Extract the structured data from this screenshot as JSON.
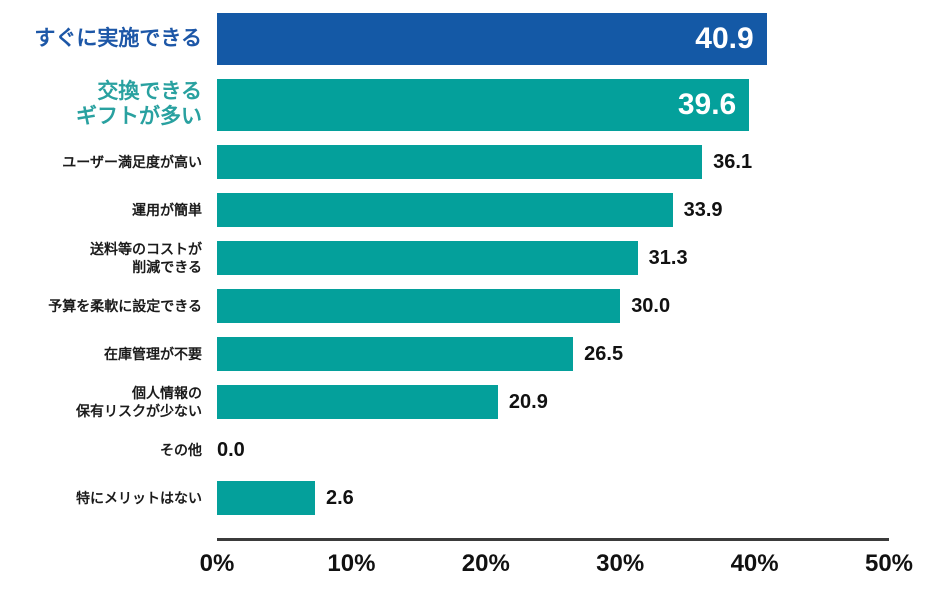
{
  "chart_data": {
    "type": "bar",
    "orientation": "horizontal",
    "title": "",
    "unit": "%",
    "items": [
      {
        "label_lines": [
          "すぐに実施できる"
        ],
        "value": 40.9,
        "display_value": "40.9",
        "color": "blue",
        "emphasis": true
      },
      {
        "label_lines": [
          "交換できる",
          "ギフトが多い"
        ],
        "value": 39.6,
        "display_value": "39.6",
        "color": "teal",
        "emphasis": true
      },
      {
        "label_lines": [
          "ユーザー満足度が高い"
        ],
        "value": 36.1,
        "display_value": "36.1",
        "color": "teal",
        "emphasis": false
      },
      {
        "label_lines": [
          "運用が簡単"
        ],
        "value": 33.9,
        "display_value": "33.9",
        "color": "teal",
        "emphasis": false
      },
      {
        "label_lines": [
          "送料等のコストが",
          "削減できる"
        ],
        "value": 31.3,
        "display_value": "31.3",
        "color": "teal",
        "emphasis": false
      },
      {
        "label_lines": [
          "予算を柔軟に設定できる"
        ],
        "value": 30.0,
        "display_value": "30.0",
        "color": "teal",
        "emphasis": false
      },
      {
        "label_lines": [
          "在庫管理が不要"
        ],
        "value": 26.5,
        "display_value": "26.5",
        "color": "teal",
        "emphasis": false
      },
      {
        "label_lines": [
          "個人情報の",
          "保有リスクが少ない"
        ],
        "value": 20.9,
        "display_value": "20.9",
        "color": "teal",
        "emphasis": false
      },
      {
        "label_lines": [
          "その他"
        ],
        "value": 0.0,
        "display_value": "0.0",
        "color": "teal",
        "emphasis": false
      },
      {
        "label_lines": [
          "特にメリットはない"
        ],
        "value": 2.6,
        "display_value": "2.6",
        "color": "teal",
        "emphasis": false
      }
    ],
    "x_axis": {
      "ticks": [
        "0%",
        "10%",
        "20%",
        "30%",
        "40%",
        "50%"
      ],
      "min": 0,
      "max": 50,
      "grid": false
    },
    "legend": null,
    "colors": {
      "blue": "#1459A6",
      "teal": "#04A09B",
      "label_blue": "#1D57A7",
      "label_teal": "#29A1A0",
      "value_inside": "#FFFFFF",
      "value_outside": "#111111",
      "axis_line": "#3B3B3B",
      "tick_text": "#111111"
    }
  }
}
